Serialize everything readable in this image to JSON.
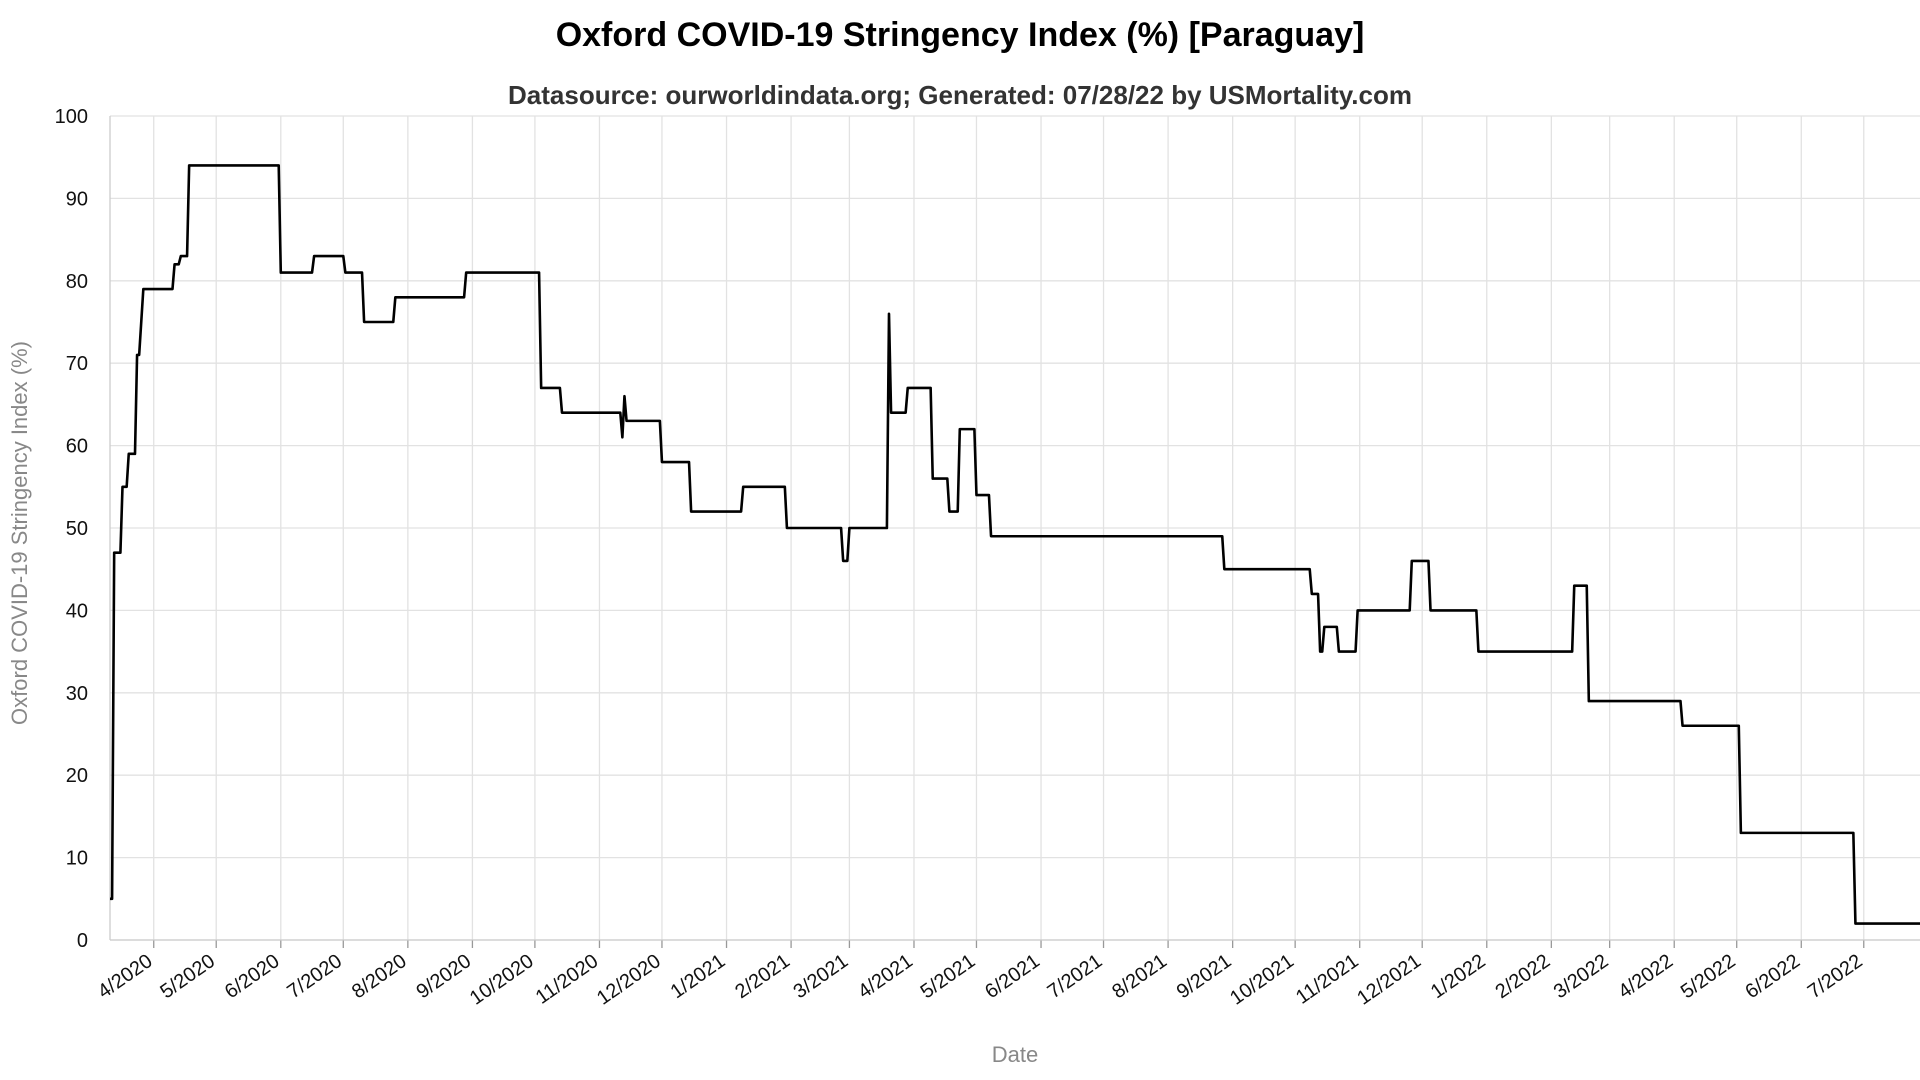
{
  "chart_data": {
    "type": "line",
    "title": "Oxford COVID-19 Stringency Index (%) [Paraguay]",
    "subtitle": "Datasource: ourworldindata.org; Generated: 07/28/22 by USMortality.com",
    "xlabel": "Date",
    "ylabel": "Oxford COVID-19 Stringency Index (%)",
    "ylim": [
      0,
      100
    ],
    "yticks": [
      0,
      10,
      20,
      30,
      40,
      50,
      60,
      70,
      80,
      90,
      100
    ],
    "xlim": [
      "2020-03-11",
      "2022-07-28"
    ],
    "xticks": [
      "4/2020",
      "5/2020",
      "6/2020",
      "7/2020",
      "8/2020",
      "9/2020",
      "10/2020",
      "11/2020",
      "12/2020",
      "1/2021",
      "2/2021",
      "3/2021",
      "4/2021",
      "5/2021",
      "6/2021",
      "7/2021",
      "8/2021",
      "9/2021",
      "10/2021",
      "11/2021",
      "12/2021",
      "1/2022",
      "2/2022",
      "3/2022",
      "4/2022",
      "5/2022",
      "6/2022",
      "7/2022"
    ],
    "xtick_dates": [
      "2020-04-01",
      "2020-05-01",
      "2020-06-01",
      "2020-07-01",
      "2020-08-01",
      "2020-09-01",
      "2020-10-01",
      "2020-11-01",
      "2020-12-01",
      "2021-01-01",
      "2021-02-01",
      "2021-03-01",
      "2021-04-01",
      "2021-05-01",
      "2021-06-01",
      "2021-07-01",
      "2021-08-01",
      "2021-09-01",
      "2021-10-01",
      "2021-11-01",
      "2021-12-01",
      "2022-01-01",
      "2022-02-01",
      "2022-03-01",
      "2022-04-01",
      "2022-05-01",
      "2022-06-01",
      "2022-07-01"
    ],
    "grid": true,
    "series": [
      {
        "color": "#000000",
        "points": [
          [
            "2020-03-11",
            5
          ],
          [
            "2020-03-12",
            5
          ],
          [
            "2020-03-13",
            47
          ],
          [
            "2020-03-16",
            47
          ],
          [
            "2020-03-17",
            55
          ],
          [
            "2020-03-19",
            55
          ],
          [
            "2020-03-20",
            59
          ],
          [
            "2020-03-23",
            59
          ],
          [
            "2020-03-24",
            71
          ],
          [
            "2020-03-25",
            71
          ],
          [
            "2020-03-27",
            79
          ],
          [
            "2020-04-10",
            79
          ],
          [
            "2020-04-11",
            82
          ],
          [
            "2020-04-13",
            82
          ],
          [
            "2020-04-14",
            83
          ],
          [
            "2020-04-17",
            83
          ],
          [
            "2020-04-18",
            94
          ],
          [
            "2020-05-31",
            94
          ],
          [
            "2020-06-01",
            81
          ],
          [
            "2020-06-16",
            81
          ],
          [
            "2020-06-17",
            83
          ],
          [
            "2020-07-01",
            83
          ],
          [
            "2020-07-02",
            81
          ],
          [
            "2020-07-10",
            81
          ],
          [
            "2020-07-11",
            75
          ],
          [
            "2020-07-25",
            75
          ],
          [
            "2020-07-26",
            78
          ],
          [
            "2020-08-28",
            78
          ],
          [
            "2020-08-29",
            81
          ],
          [
            "2020-10-03",
            81
          ],
          [
            "2020-10-04",
            67
          ],
          [
            "2020-10-13",
            67
          ],
          [
            "2020-10-14",
            64
          ],
          [
            "2020-11-11",
            64
          ],
          [
            "2020-11-12",
            61
          ],
          [
            "2020-11-13",
            66
          ],
          [
            "2020-11-14",
            63
          ],
          [
            "2020-11-30",
            63
          ],
          [
            "2020-12-01",
            58
          ],
          [
            "2020-12-14",
            58
          ],
          [
            "2020-12-15",
            52
          ],
          [
            "2021-01-08",
            52
          ],
          [
            "2021-01-09",
            55
          ],
          [
            "2021-01-29",
            55
          ],
          [
            "2021-01-30",
            50
          ],
          [
            "2021-02-25",
            50
          ],
          [
            "2021-02-26",
            46
          ],
          [
            "2021-02-28",
            46
          ],
          [
            "2021-03-01",
            50
          ],
          [
            "2021-03-19",
            50
          ],
          [
            "2021-03-20",
            76
          ],
          [
            "2021-03-21",
            64
          ],
          [
            "2021-03-28",
            64
          ],
          [
            "2021-03-29",
            67
          ],
          [
            "2021-04-09",
            67
          ],
          [
            "2021-04-10",
            56
          ],
          [
            "2021-04-17",
            56
          ],
          [
            "2021-04-18",
            52
          ],
          [
            "2021-04-22",
            52
          ],
          [
            "2021-04-23",
            62
          ],
          [
            "2021-04-30",
            62
          ],
          [
            "2021-05-01",
            54
          ],
          [
            "2021-05-07",
            54
          ],
          [
            "2021-05-08",
            49
          ],
          [
            "2021-08-27",
            49
          ],
          [
            "2021-08-28",
            45
          ],
          [
            "2021-10-08",
            45
          ],
          [
            "2021-10-09",
            42
          ],
          [
            "2021-10-12",
            42
          ],
          [
            "2021-10-13",
            35
          ],
          [
            "2021-10-14",
            35
          ],
          [
            "2021-10-15",
            38
          ],
          [
            "2021-10-21",
            38
          ],
          [
            "2021-10-22",
            35
          ],
          [
            "2021-10-30",
            35
          ],
          [
            "2021-10-31",
            40
          ],
          [
            "2021-11-25",
            40
          ],
          [
            "2021-11-26",
            46
          ],
          [
            "2021-12-04",
            46
          ],
          [
            "2021-12-05",
            40
          ],
          [
            "2021-12-27",
            40
          ],
          [
            "2021-12-28",
            35
          ],
          [
            "2022-02-11",
            35
          ],
          [
            "2022-02-12",
            43
          ],
          [
            "2022-02-18",
            43
          ],
          [
            "2022-02-19",
            29
          ],
          [
            "2022-04-04",
            29
          ],
          [
            "2022-04-05",
            26
          ],
          [
            "2022-05-02",
            26
          ],
          [
            "2022-05-03",
            13
          ],
          [
            "2022-06-26",
            13
          ],
          [
            "2022-06-27",
            2
          ],
          [
            "2022-07-28",
            2
          ]
        ]
      }
    ]
  }
}
